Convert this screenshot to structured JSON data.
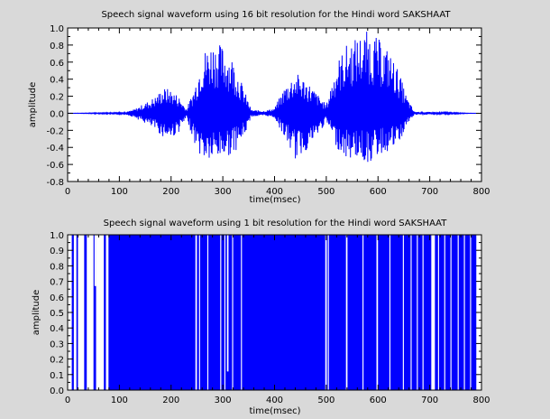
{
  "chart_data": [
    {
      "type": "line",
      "title": "Speech signal waveform using 16 bit resolution for the Hindi word SAKSHAAT",
      "xlabel": "time(msec)",
      "ylabel": "amplitude",
      "xlim": [
        0,
        800
      ],
      "ylim": [
        -0.8,
        1.0
      ],
      "xticks": [
        "0",
        "100",
        "200",
        "300",
        "400",
        "500",
        "600",
        "700",
        "800"
      ],
      "yticks": [
        "-0.8",
        "-0.6",
        "-0.4",
        "-0.2",
        "0.0",
        "0.2",
        "0.4",
        "0.6",
        "0.8",
        "1.0"
      ],
      "grid": false,
      "series_color": "#0000ff",
      "envelope": [
        {
          "t": 0,
          "max": 0.0,
          "min": 0.0
        },
        {
          "t": 110,
          "max": 0.01,
          "min": -0.01
        },
        {
          "t": 130,
          "max": 0.05,
          "min": -0.05
        },
        {
          "t": 150,
          "max": 0.12,
          "min": -0.12
        },
        {
          "t": 170,
          "max": 0.2,
          "min": -0.2
        },
        {
          "t": 185,
          "max": 0.3,
          "min": -0.28
        },
        {
          "t": 200,
          "max": 0.28,
          "min": -0.3
        },
        {
          "t": 215,
          "max": 0.2,
          "min": -0.22
        },
        {
          "t": 230,
          "max": 0.05,
          "min": -0.06
        },
        {
          "t": 245,
          "max": 0.3,
          "min": -0.35
        },
        {
          "t": 260,
          "max": 0.72,
          "min": -0.55
        },
        {
          "t": 280,
          "max": 0.85,
          "min": -0.58
        },
        {
          "t": 300,
          "max": 0.8,
          "min": -0.52
        },
        {
          "t": 320,
          "max": 0.65,
          "min": -0.48
        },
        {
          "t": 340,
          "max": 0.3,
          "min": -0.3
        },
        {
          "t": 355,
          "max": 0.04,
          "min": -0.04
        },
        {
          "t": 380,
          "max": 0.03,
          "min": -0.03
        },
        {
          "t": 400,
          "max": 0.06,
          "min": -0.05
        },
        {
          "t": 420,
          "max": 0.32,
          "min": -0.3
        },
        {
          "t": 440,
          "max": 0.48,
          "min": -0.55
        },
        {
          "t": 460,
          "max": 0.4,
          "min": -0.45
        },
        {
          "t": 480,
          "max": 0.25,
          "min": -0.3
        },
        {
          "t": 500,
          "max": 0.1,
          "min": -0.1
        },
        {
          "t": 520,
          "max": 0.6,
          "min": -0.4
        },
        {
          "t": 540,
          "max": 0.82,
          "min": -0.55
        },
        {
          "t": 560,
          "max": 0.9,
          "min": -0.52
        },
        {
          "t": 580,
          "max": 0.97,
          "min": -0.6
        },
        {
          "t": 600,
          "max": 0.88,
          "min": -0.5
        },
        {
          "t": 620,
          "max": 0.75,
          "min": -0.45
        },
        {
          "t": 640,
          "max": 0.5,
          "min": -0.38
        },
        {
          "t": 655,
          "max": 0.2,
          "min": -0.15
        },
        {
          "t": 670,
          "max": 0.02,
          "min": -0.02
        },
        {
          "t": 790,
          "max": 0.0,
          "min": 0.0
        }
      ]
    },
    {
      "type": "line",
      "title": "Speech signal waveform using 1 bit resolution for the Hindi word SAKSHAAT",
      "xlabel": "time(msec)",
      "ylabel": "amplitude",
      "xlim": [
        0,
        800
      ],
      "ylim": [
        0,
        1.0
      ],
      "xticks": [
        "0",
        "100",
        "200",
        "300",
        "400",
        "500",
        "600",
        "700",
        "800"
      ],
      "yticks": [
        "0.0",
        "0.1",
        "0.2",
        "0.3",
        "0.4",
        "0.5",
        "0.6",
        "0.7",
        "0.8",
        "0.9",
        "1.0"
      ],
      "grid": false,
      "series_color": "#0000ff",
      "fill_start": 8,
      "fill_end": 790,
      "gaps": [
        {
          "start": 12,
          "end": 17,
          "level": 0
        },
        {
          "start": 20,
          "end": 32,
          "level": 0
        },
        {
          "start": 37,
          "end": 50,
          "level": 0
        },
        {
          "start": 52,
          "end": 55,
          "level": 0.67
        },
        {
          "start": 55,
          "end": 70,
          "level": 0
        },
        {
          "start": 74,
          "end": 79,
          "level": 0
        },
        {
          "start": 247,
          "end": 250,
          "level": 0
        },
        {
          "start": 254,
          "end": 256,
          "level": 0
        },
        {
          "start": 270,
          "end": 272,
          "level": 0
        },
        {
          "start": 295,
          "end": 297,
          "level": 0
        },
        {
          "start": 303,
          "end": 305,
          "level": 0
        },
        {
          "start": 308,
          "end": 311,
          "level": 0.12
        },
        {
          "start": 318,
          "end": 320,
          "level": 0
        },
        {
          "start": 335,
          "end": 337,
          "level": 0
        },
        {
          "start": 498,
          "end": 501,
          "level": 0
        },
        {
          "start": 503,
          "end": 505,
          "level": 0
        },
        {
          "start": 538,
          "end": 541,
          "level": 0
        },
        {
          "start": 570,
          "end": 572,
          "level": 0
        },
        {
          "start": 597,
          "end": 600,
          "level": 0
        },
        {
          "start": 622,
          "end": 624,
          "level": 0
        },
        {
          "start": 648,
          "end": 650,
          "level": 0
        },
        {
          "start": 663,
          "end": 665,
          "level": 0
        },
        {
          "start": 675,
          "end": 677,
          "level": 0
        },
        {
          "start": 686,
          "end": 688,
          "level": 0
        },
        {
          "start": 703,
          "end": 710,
          "level": 0
        },
        {
          "start": 716,
          "end": 718,
          "level": 0
        },
        {
          "start": 728,
          "end": 730,
          "level": 0
        },
        {
          "start": 740,
          "end": 742,
          "level": 0
        },
        {
          "start": 754,
          "end": 756,
          "level": 0
        },
        {
          "start": 766,
          "end": 768,
          "level": 0
        },
        {
          "start": 778,
          "end": 780,
          "level": 0
        }
      ]
    }
  ]
}
